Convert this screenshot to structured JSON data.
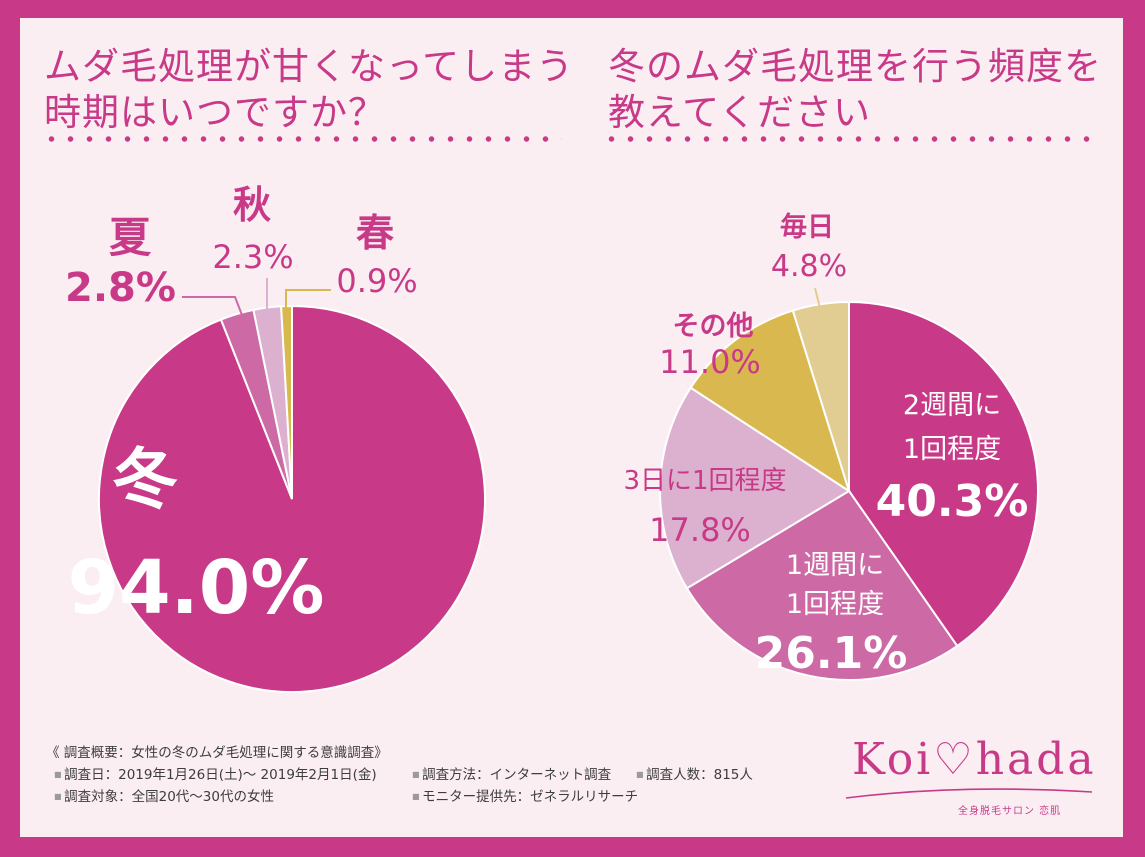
{
  "chart_data": [
    {
      "type": "pie",
      "title_lines": [
        "ムダ毛処理が甘くなってしまう",
        "時期はいつですか？"
      ],
      "slices": [
        {
          "label": "冬",
          "value": 94.0,
          "value_text": "94.0%",
          "color": "#c83a88"
        },
        {
          "label": "夏",
          "value": 2.8,
          "value_text": "2.8%",
          "color": "#cd6aa5"
        },
        {
          "label": "秋",
          "value": 2.3,
          "value_text": "2.3%",
          "color": "#dcb0cf"
        },
        {
          "label": "春",
          "value": 0.9,
          "value_text": "0.9%",
          "color": "#d9b94f"
        }
      ]
    },
    {
      "type": "pie",
      "title_lines": [
        "冬のムダ毛処理を行う頻度を",
        "教えてください"
      ],
      "slices": [
        {
          "label_lines": [
            "2週間に",
            "1回程度"
          ],
          "value": 40.3,
          "value_text": "40.3%",
          "color": "#c83a88"
        },
        {
          "label_lines": [
            "1週間に",
            "1回程度"
          ],
          "value": 26.1,
          "value_text": "26.1%",
          "color": "#cd6aa5"
        },
        {
          "label_lines": [
            "3日に1回程度"
          ],
          "value": 17.8,
          "value_text": "17.8%",
          "color": "#dcb0cf"
        },
        {
          "label_lines": [
            "その他"
          ],
          "value": 11.0,
          "value_text": "11.0%",
          "color": "#d9b94f"
        },
        {
          "label_lines": [
            "毎日"
          ],
          "value": 4.8,
          "value_text": "4.8%",
          "color": "#e1cd91"
        }
      ]
    }
  ],
  "survey": {
    "heading": "《 調査概要：女性の冬のムダ毛処理に関する意識調査》",
    "date": "調査日：2019年1月26日(土)～ 2019年2月1日(金)",
    "method": "調査方法：インターネット調査",
    "count": "調査人数：815人",
    "target": "調査対象：全国20代～30代の女性",
    "provider": "モニター提供先：ゼネラルリサーチ"
  },
  "logo": {
    "text": "Koi♡hada",
    "sub": "全身脱毛サロン 恋肌"
  },
  "colors": {
    "accent": "#c83a88",
    "background": "#fbeef3"
  }
}
